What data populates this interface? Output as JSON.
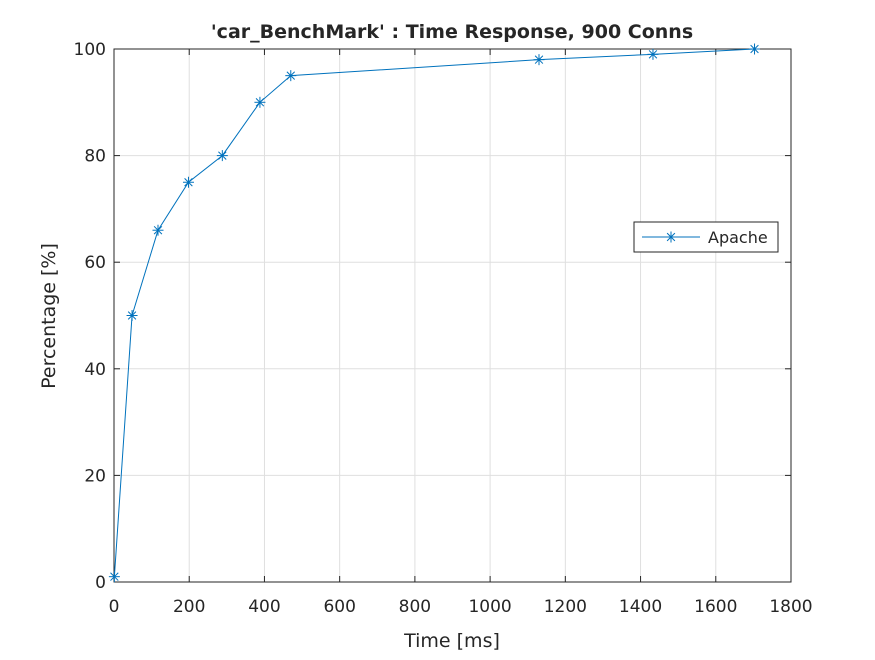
{
  "chart_data": {
    "type": "line",
    "title": "'car_BenchMark' : Time Response, 900 Conns",
    "xlabel": "Time [ms]",
    "ylabel": "Percentage [%]",
    "xlim": [
      0,
      1800
    ],
    "ylim": [
      0,
      100
    ],
    "xticks": [
      0,
      200,
      400,
      600,
      800,
      1000,
      1200,
      1400,
      1600,
      1800
    ],
    "yticks": [
      0,
      20,
      40,
      60,
      80,
      100
    ],
    "xtick_labels": [
      "0",
      "200",
      "400",
      "600",
      "800",
      "1000",
      "1200",
      "1400",
      "1600",
      "1800"
    ],
    "ytick_labels": [
      "0",
      "20",
      "40",
      "60",
      "80",
      "100"
    ],
    "grid": true,
    "legend_position": "right",
    "series": [
      {
        "name": "Apache",
        "color": "#0072bd",
        "marker": "asterisk",
        "x": [
          1,
          48,
          117,
          198,
          288,
          388,
          470,
          1130,
          1433,
          1703
        ],
        "y": [
          1,
          50,
          66,
          75,
          80,
          90,
          95,
          98,
          99,
          100
        ]
      }
    ]
  }
}
